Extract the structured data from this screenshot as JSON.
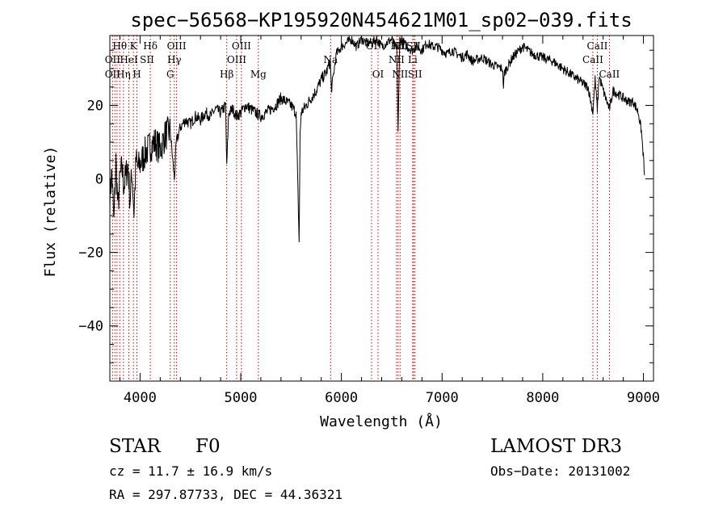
{
  "chart_data": {
    "type": "line",
    "title": "spec−56568−KP195920N454621M01_sp02−039.fits",
    "xlabel": "Wavelength (Å)",
    "ylabel": "Flux (relative)",
    "xlim": [
      3700,
      9100
    ],
    "ylim": [
      -55,
      39
    ],
    "xticks": [
      4000,
      5000,
      6000,
      7000,
      8000,
      9000
    ],
    "xtick_labels": [
      "4000",
      "5000",
      "6000",
      "7000",
      "8000",
      "9000"
    ],
    "yticks": [
      -40,
      -20,
      0,
      20
    ],
    "ytick_labels": [
      "−40",
      "−20",
      "0",
      "20"
    ],
    "series": [
      {
        "name": "spectrum",
        "x": [
          3700,
          3720,
          3740,
          3760,
          3780,
          3800,
          3820,
          3840,
          3860,
          3880,
          3900,
          3920,
          3940,
          3960,
          3980,
          4000,
          4050,
          4100,
          4150,
          4200,
          4250,
          4300,
          4340,
          4360,
          4400,
          4450,
          4500,
          4550,
          4600,
          4650,
          4700,
          4750,
          4800,
          4850,
          4861,
          4880,
          4920,
          4960,
          5000,
          5050,
          5100,
          5150,
          5200,
          5250,
          5300,
          5350,
          5400,
          5450,
          5500,
          5550,
          5580,
          5590,
          5600,
          5650,
          5700,
          5750,
          5800,
          5850,
          5890,
          5900,
          5950,
          6000,
          6050,
          6100,
          6150,
          6200,
          6250,
          6300,
          6350,
          6400,
          6450,
          6500,
          6550,
          6563,
          6580,
          6620,
          6650,
          6700,
          6750,
          6800,
          6850,
          6900,
          6950,
          7000,
          7050,
          7100,
          7150,
          7200,
          7250,
          7300,
          7400,
          7500,
          7600,
          7610,
          7620,
          7700,
          7800,
          7900,
          8000,
          8100,
          8200,
          8300,
          8400,
          8450,
          8498,
          8520,
          8542,
          8560,
          8600,
          8662,
          8700,
          8750,
          8800,
          8850,
          8900,
          8950,
          8980,
          9000,
          9010
        ],
        "y": [
          -5,
          2,
          -12,
          5,
          -8,
          0,
          3,
          -2,
          1,
          4,
          -6,
          2,
          -9,
          5,
          3,
          4,
          7,
          9,
          10,
          8,
          12,
          13,
          0,
          10,
          14,
          16,
          15,
          17,
          16,
          18,
          17,
          19,
          18,
          20,
          3,
          18,
          19,
          17,
          18,
          20,
          19,
          18,
          17,
          18,
          19,
          20,
          22,
          21,
          20,
          18,
          -17,
          12,
          18,
          20,
          22,
          24,
          27,
          29,
          32,
          24,
          34,
          36,
          37,
          38,
          36,
          38,
          37,
          37,
          38,
          36,
          37,
          38,
          35,
          13,
          38,
          37,
          36,
          35,
          36,
          35,
          37,
          36,
          36,
          35,
          34,
          35,
          34,
          33,
          34,
          32,
          33,
          31,
          30,
          25,
          29,
          33,
          36,
          34,
          33,
          32,
          30,
          28,
          26,
          25,
          18,
          27,
          19,
          28,
          24,
          19,
          24,
          23,
          22,
          21,
          21,
          18,
          13,
          6,
          1
        ]
      }
    ],
    "lines": {
      "x": [
        3727,
        3750,
        3771,
        3798,
        3835,
        3889,
        3934,
        3969,
        4102,
        4300,
        4340,
        4363,
        4861,
        4959,
        5007,
        5175,
        5893,
        6300,
        6364,
        6548,
        6563,
        6583,
        6708,
        6717,
        6731,
        8498,
        8542,
        8662
      ],
      "labels": [
        {
          "text": "Hθ",
          "x": 3798,
          "row": 0
        },
        {
          "text": "K",
          "x": 3934,
          "row": 0
        },
        {
          "text": "Hδ",
          "x": 4102,
          "row": 0
        },
        {
          "text": "OIII",
          "x": 4363,
          "row": 0
        },
        {
          "text": "OIII",
          "x": 5007,
          "row": 0
        },
        {
          "text": "OI",
          "x": 6300,
          "row": 0
        },
        {
          "text": "Hα",
          "x": 6563,
          "row": 0
        },
        {
          "text": "SII",
          "x": 6717,
          "row": 0
        },
        {
          "text": "NII",
          "x": 6583,
          "row": 0
        },
        {
          "text": "CaII",
          "x": 8542,
          "row": 0
        },
        {
          "text": "OII",
          "x": 3727,
          "row": 1
        },
        {
          "text": "HeI",
          "x": 3889,
          "row": 1
        },
        {
          "text": "SII",
          "x": 4069,
          "row": 1
        },
        {
          "text": "Hγ",
          "x": 4340,
          "row": 1
        },
        {
          "text": "OIII",
          "x": 4959,
          "row": 1
        },
        {
          "text": "Na",
          "x": 5893,
          "row": 1
        },
        {
          "text": "NII",
          "x": 6548,
          "row": 1
        },
        {
          "text": "Li",
          "x": 6708,
          "row": 1
        },
        {
          "text": "CaII",
          "x": 8498,
          "row": 1
        },
        {
          "text": "OII",
          "x": 3727,
          "row": 2
        },
        {
          "text": "Hη",
          "x": 3835,
          "row": 2
        },
        {
          "text": "H",
          "x": 3969,
          "row": 2
        },
        {
          "text": "G",
          "x": 4300,
          "row": 2
        },
        {
          "text": "Hβ",
          "x": 4861,
          "row": 2
        },
        {
          "text": "Mg",
          "x": 5175,
          "row": 2
        },
        {
          "text": "OI",
          "x": 6364,
          "row": 2
        },
        {
          "text": "NII",
          "x": 6583,
          "row": 2
        },
        {
          "text": "SII",
          "x": 6731,
          "row": 2
        },
        {
          "text": "CaII",
          "x": 8662,
          "row": 2
        }
      ]
    }
  },
  "info": {
    "class": "STAR",
    "subclass": "F0",
    "survey": "LAMOST DR3",
    "cz": "cz = 11.7 ± 16.9 km/s",
    "obsdate": "Obs−Date: 20131002",
    "radec": "RA = 297.87733, DEC =  44.36321"
  },
  "colors": {
    "line": "#000000",
    "marker": "#cc0000"
  }
}
